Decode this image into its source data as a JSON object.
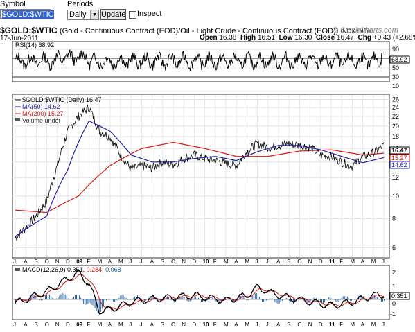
{
  "toolbar": {
    "symbol_label": "Symbol",
    "symbol_value": "$GOLD:$WTIC",
    "periods_label": "Periods",
    "period_value": "Daily",
    "update_label": "Update",
    "inspect_label": "Inspect"
  },
  "header": {
    "symbol": "$GOLD:$WTIC",
    "description": "(Gold - Continuous Contract (EOD)/Oil - Light Crude - Continuous Contract (EOD))",
    "exchange": "INDX/INDX",
    "watermark": "© StockCharts.com",
    "date": "17-Jun-2011",
    "open_label": "Open",
    "open": "16.38",
    "high_label": "High",
    "high": "16.51",
    "low_label": "Low",
    "low": "16.30",
    "close_label": "Close",
    "close": "16.47",
    "chg_label": "Chg",
    "chg": "+0.43 (+2.68%)"
  },
  "colors": {
    "price": "#000000",
    "ma50": "#1f1fb4",
    "ma200": "#e01010",
    "macd_signal": "#e01010",
    "hist": "#1f5fa0",
    "grid": "#d0d0d0"
  },
  "rsi_panel": {
    "legend": "RSI(14) 68.92",
    "value_tag": "68.92",
    "ticks": [
      "90",
      "70",
      "50",
      "30",
      "10"
    ]
  },
  "price_panel": {
    "legend_price": "$GOLD:$WTIC (Daily) 16.47",
    "legend_ma50": "MA(50) 14.62",
    "legend_ma200": "MA(200) 15.27",
    "legend_volume": "Volume undef",
    "tag_price": "16.47",
    "tag_ma200": "15.27",
    "tag_ma50": "14.62",
    "ticks": [
      "26",
      "24",
      "22",
      "20",
      "18",
      "16",
      "14",
      "12",
      "10",
      "8",
      "6"
    ]
  },
  "macd_panel": {
    "legend_name": "MACD(12,26,9)",
    "legend_v1": "0.351,",
    "legend_v2": "0.284,",
    "legend_v3": "0.068",
    "value_tag": "0.351",
    "ticks": [
      "2",
      "1",
      "0",
      "-1"
    ]
  },
  "x_axis_labels": [
    "J",
    "A",
    "S",
    "O",
    "N",
    "D",
    "09",
    "F",
    "M",
    "A",
    "M",
    "J",
    "J",
    "A",
    "S",
    "O",
    "N",
    "D",
    "10",
    "F",
    "M",
    "A",
    "M",
    "J",
    "J",
    "A",
    "S",
    "O",
    "N",
    "D",
    "11",
    "F",
    "M",
    "A",
    "M",
    "J"
  ],
  "chart_data": {
    "type": "line",
    "title": "$GOLD:$WTIC",
    "x_range": [
      "Jul-2008",
      "Jun-2011"
    ],
    "scale": "log",
    "ylim": [
      5.5,
      27
    ],
    "series": [
      {
        "name": "$GOLD:$WTIC (Daily)",
        "points": [
          [
            "Jul-2008",
            6.6
          ],
          [
            "Aug-2008",
            7.3
          ],
          [
            "Sep-2008",
            8.2
          ],
          [
            "Oct-2008",
            9.5
          ],
          [
            "Nov-2008",
            13.5
          ],
          [
            "Dec-2008",
            19
          ],
          [
            "Jan-2009",
            22
          ],
          [
            "Feb-2009",
            24
          ],
          [
            "Mar-2009",
            19
          ],
          [
            "Apr-2009",
            18
          ],
          [
            "May-2009",
            15
          ],
          [
            "Jun-2009",
            13
          ],
          [
            "Jul-2009",
            13.5
          ],
          [
            "Aug-2009",
            13.2
          ],
          [
            "Sep-2009",
            14
          ],
          [
            "Oct-2009",
            13.6
          ],
          [
            "Nov-2009",
            14.5
          ],
          [
            "Dec-2009",
            15
          ],
          [
            "Jan-2010",
            14.5
          ],
          [
            "Feb-2010",
            14.2
          ],
          [
            "Mar-2010",
            13.8
          ],
          [
            "Apr-2010",
            13.5
          ],
          [
            "May-2010",
            15.5
          ],
          [
            "Jun-2010",
            16.8
          ],
          [
            "Jul-2010",
            16.2
          ],
          [
            "Aug-2010",
            16.5
          ],
          [
            "Sep-2010",
            16.8
          ],
          [
            "Oct-2010",
            16.5
          ],
          [
            "Nov-2010",
            16.2
          ],
          [
            "Dec-2010",
            15
          ],
          [
            "Jan-2011",
            14.8
          ],
          [
            "Feb-2011",
            14
          ],
          [
            "Mar-2011",
            13.4
          ],
          [
            "Apr-2011",
            14.8
          ],
          [
            "May-2011",
            15.3
          ],
          [
            "Jun-2011",
            16.47
          ]
        ]
      },
      {
        "name": "MA(50)",
        "points": [
          [
            "Jul-2008",
            6.7
          ],
          [
            "Oct-2008",
            8.2
          ],
          [
            "Dec-2008",
            13
          ],
          [
            "Feb-2009",
            21
          ],
          [
            "Apr-2009",
            19
          ],
          [
            "Jun-2009",
            15
          ],
          [
            "Aug-2009",
            14
          ],
          [
            "Oct-2009",
            14
          ],
          [
            "Dec-2009",
            14.5
          ],
          [
            "Feb-2010",
            14.8
          ],
          [
            "Apr-2010",
            14.2
          ],
          [
            "Jun-2010",
            15.5
          ],
          [
            "Aug-2010",
            16.5
          ],
          [
            "Oct-2010",
            16.5
          ],
          [
            "Dec-2010",
            15.8
          ],
          [
            "Feb-2011",
            14.8
          ],
          [
            "Apr-2011",
            13.9
          ],
          [
            "Jun-2011",
            14.62
          ]
        ]
      },
      {
        "name": "MA(200)",
        "points": [
          [
            "Jul-2008",
            8.7
          ],
          [
            "Oct-2008",
            8.5
          ],
          [
            "Jan-2009",
            10
          ],
          [
            "Apr-2009",
            13.5
          ],
          [
            "Jul-2009",
            16
          ],
          [
            "Oct-2009",
            17
          ],
          [
            "Jan-2010",
            16
          ],
          [
            "Apr-2010",
            14.8
          ],
          [
            "Jul-2010",
            14.8
          ],
          [
            "Oct-2010",
            15.6
          ],
          [
            "Jan-2011",
            15.8
          ],
          [
            "Apr-2011",
            15
          ],
          [
            "Jun-2011",
            15.27
          ]
        ]
      }
    ],
    "rsi": {
      "name": "RSI(14)",
      "last": 68.92,
      "ylim": [
        10,
        90
      ]
    },
    "macd": {
      "name": "MACD(12,26,9)",
      "macd": 0.351,
      "signal": 0.284,
      "histogram": 0.068,
      "ylim": [
        -1.5,
        2.5
      ]
    }
  }
}
